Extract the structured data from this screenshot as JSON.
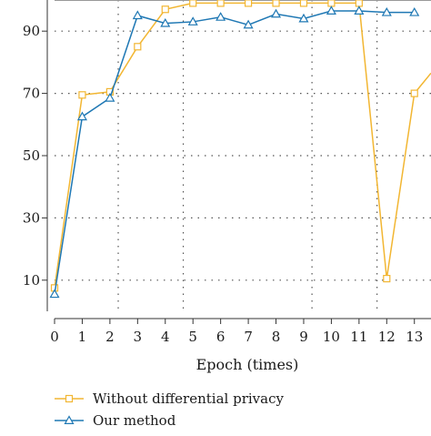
{
  "chart_data": {
    "type": "line",
    "xlabel": "Epoch (times)",
    "ylabel": "",
    "x_ticks": [
      0,
      1,
      2,
      3,
      4,
      5,
      6,
      7,
      8,
      9,
      10,
      11,
      12,
      13
    ],
    "y_ticks": [
      10,
      30,
      50,
      70,
      90
    ],
    "xlim": [
      0,
      13.6
    ],
    "ylim": [
      0,
      100
    ],
    "grid": true,
    "legend_position": "bottom",
    "series": [
      {
        "name": "Without differential privacy",
        "color": "#f2b632",
        "marker": "square",
        "x": [
          0,
          1,
          2,
          3,
          4,
          5,
          6,
          7,
          8,
          9,
          10,
          11,
          12,
          13,
          13.6
        ],
        "y": [
          7.5,
          69.5,
          70.5,
          85,
          97,
          99,
          99,
          99,
          99,
          99,
          99,
          99,
          10.5,
          70,
          76.5
        ]
      },
      {
        "name": "Our method",
        "color": "#1f78b4",
        "marker": "triangle",
        "x": [
          0,
          1,
          2,
          3,
          4,
          5,
          6,
          7,
          8,
          9,
          10,
          11,
          12,
          13
        ],
        "y": [
          5.5,
          62.5,
          68.5,
          95,
          92.5,
          93,
          94.5,
          92,
          95.5,
          94,
          96.5,
          96.5,
          96,
          96
        ]
      }
    ]
  }
}
